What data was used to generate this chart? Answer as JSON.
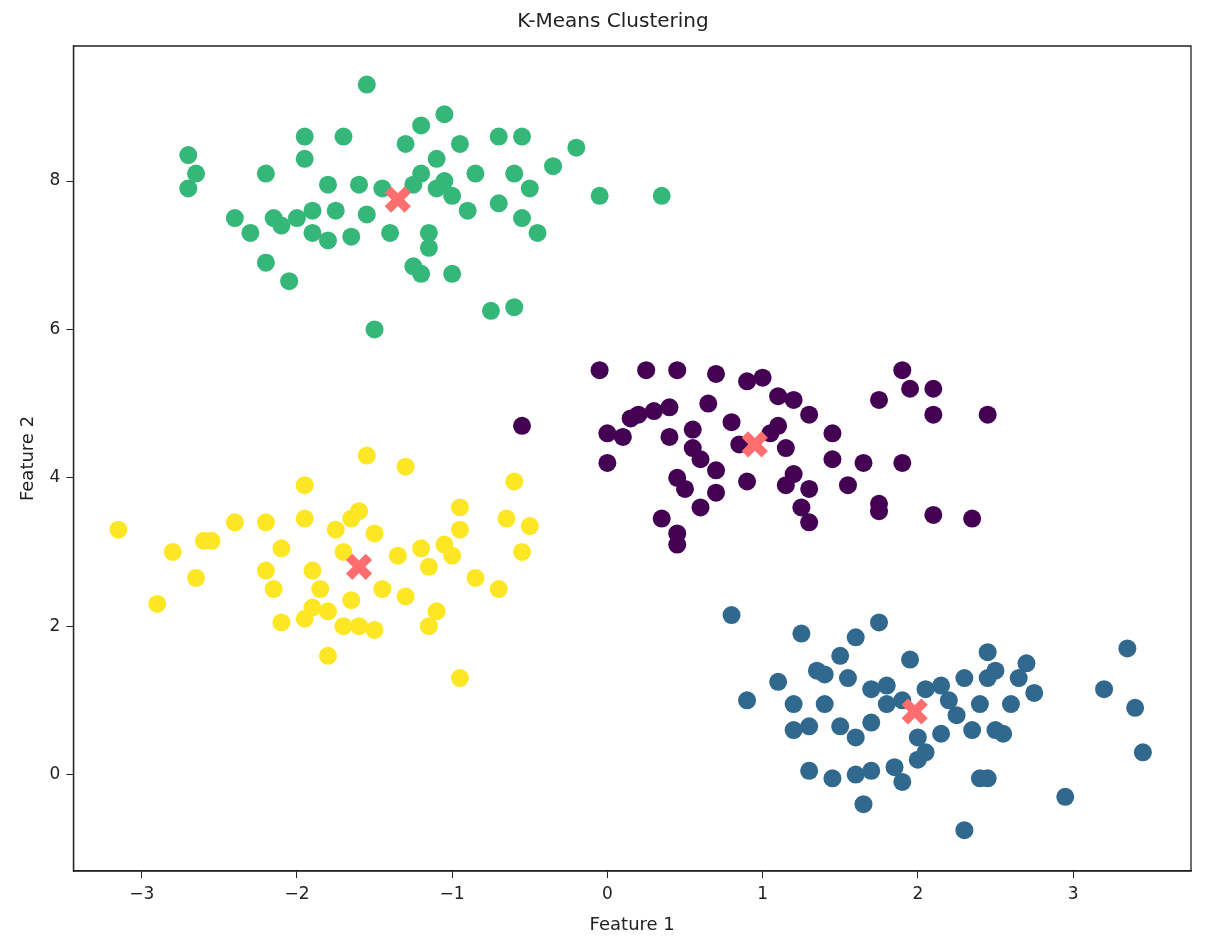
{
  "chart_data": {
    "type": "scatter",
    "title": "K-Means Clustering",
    "xlabel": "Feature 1",
    "ylabel": "Feature 2",
    "xlim": [
      -3.44,
      3.76
    ],
    "ylim": [
      -1.3,
      9.82
    ],
    "xticks": [
      -3,
      -2,
      -1,
      0,
      1,
      2,
      3
    ],
    "yticks": [
      0,
      2,
      4,
      6,
      8
    ],
    "grid": false,
    "legend": false,
    "series": [
      {
        "color": "#440154",
        "marker": "circle",
        "x": [
          -0.05,
          0.25,
          0.45,
          0.7,
          0.9,
          1.0,
          1.1,
          1.2,
          0.65,
          0.8,
          0.2,
          0.3,
          0.4,
          0.15,
          0.0,
          0.1,
          0.0,
          0.4,
          0.55,
          0.55,
          0.6,
          0.7,
          0.45,
          0.5,
          0.7,
          0.6,
          0.35,
          0.45,
          0.45,
          0.9,
          1.05,
          1.1,
          1.15,
          1.2,
          1.3,
          1.25,
          1.3,
          1.15,
          1.45,
          1.45,
          1.65,
          1.55,
          1.75,
          1.75,
          1.9,
          1.9,
          1.95,
          2.1,
          2.1,
          2.45,
          2.1,
          2.35,
          1.75,
          -0.55,
          0.85,
          1.3
        ],
        "values": [
          5.45,
          5.45,
          5.45,
          5.4,
          5.3,
          5.35,
          5.1,
          5.05,
          5.0,
          4.75,
          4.85,
          4.9,
          4.95,
          4.8,
          4.6,
          4.55,
          4.2,
          4.55,
          4.65,
          4.4,
          4.25,
          4.1,
          4.0,
          3.85,
          3.8,
          3.6,
          3.45,
          3.25,
          3.1,
          3.95,
          4.6,
          4.7,
          4.4,
          4.05,
          3.85,
          3.6,
          3.4,
          3.9,
          4.6,
          4.25,
          4.2,
          3.9,
          3.65,
          3.55,
          4.2,
          5.45,
          5.2,
          5.2,
          4.85,
          4.85,
          3.5,
          3.45,
          5.05,
          4.7,
          4.45,
          4.85
        ]
      },
      {
        "color": "#31688e",
        "marker": "circle",
        "x": [
          0.8,
          0.9,
          1.1,
          1.2,
          1.25,
          1.35,
          1.4,
          1.5,
          1.55,
          1.6,
          1.75,
          1.7,
          1.8,
          1.9,
          1.95,
          2.05,
          2.15,
          2.2,
          2.3,
          2.45,
          2.5,
          2.45,
          2.7,
          2.65,
          2.75,
          3.2,
          3.35,
          3.4,
          3.45,
          1.2,
          1.3,
          1.4,
          1.5,
          1.6,
          1.7,
          1.3,
          1.45,
          1.6,
          1.7,
          1.65,
          1.85,
          1.9,
          2.0,
          2.05,
          2.0,
          2.15,
          2.25,
          2.35,
          2.4,
          2.5,
          2.55,
          2.4,
          2.45,
          2.3,
          2.95,
          1.8,
          2.6
        ],
        "values": [
          2.15,
          1.0,
          1.25,
          0.95,
          1.9,
          1.4,
          1.35,
          1.6,
          1.3,
          1.85,
          2.05,
          1.15,
          1.2,
          1.0,
          1.55,
          1.15,
          1.2,
          1.0,
          1.3,
          1.65,
          1.4,
          1.3,
          1.5,
          1.3,
          1.1,
          1.15,
          1.7,
          0.9,
          0.3,
          0.6,
          0.65,
          0.95,
          0.65,
          0.5,
          0.7,
          0.05,
          -0.05,
          0.0,
          0.05,
          -0.4,
          0.1,
          -0.1,
          0.5,
          0.3,
          0.2,
          0.55,
          0.8,
          0.6,
          0.95,
          0.6,
          0.55,
          -0.05,
          -0.05,
          -0.75,
          -0.3,
          0.95,
          0.95
        ]
      },
      {
        "color": "#35b779",
        "marker": "circle",
        "x": [
          -1.55,
          -1.2,
          -1.05,
          -2.7,
          -2.65,
          -2.7,
          -2.4,
          -2.2,
          -1.95,
          -1.95,
          -1.7,
          -1.3,
          -1.2,
          -1.1,
          -0.95,
          -0.85,
          -0.7,
          -0.55,
          -0.6,
          -0.35,
          -0.2,
          0.35,
          -0.05,
          -0.5,
          -0.55,
          -0.45,
          -0.7,
          -0.9,
          -1.0,
          -1.1,
          -1.15,
          -1.15,
          -1.25,
          -1.2,
          -1.0,
          -0.75,
          -0.6,
          -1.5,
          -1.4,
          -1.45,
          -1.55,
          -1.65,
          -1.75,
          -1.8,
          -1.9,
          -1.9,
          -1.8,
          -2.0,
          -2.1,
          -2.3,
          -2.2,
          -2.05,
          -2.15,
          -1.6,
          -1.25,
          -1.05
        ],
        "values": [
          9.3,
          8.75,
          8.9,
          8.35,
          8.1,
          7.9,
          7.5,
          8.1,
          8.6,
          8.3,
          8.6,
          8.5,
          8.1,
          8.3,
          8.5,
          8.1,
          8.6,
          8.6,
          8.1,
          8.2,
          8.45,
          7.8,
          7.8,
          7.9,
          7.5,
          7.3,
          7.7,
          7.6,
          7.8,
          7.9,
          7.3,
          7.1,
          6.85,
          6.75,
          6.75,
          6.25,
          6.3,
          6.0,
          7.3,
          7.9,
          7.55,
          7.25,
          7.6,
          7.95,
          7.6,
          7.3,
          7.2,
          7.5,
          7.4,
          7.3,
          6.9,
          6.65,
          7.5,
          7.95,
          7.95,
          8.0
        ]
      },
      {
        "color": "#fde725",
        "marker": "circle",
        "x": [
          -3.15,
          -2.8,
          -2.65,
          -2.6,
          -2.55,
          -2.4,
          -2.9,
          -2.2,
          -2.2,
          -2.15,
          -2.1,
          -2.1,
          -1.95,
          -1.95,
          -1.9,
          -1.85,
          -1.8,
          -1.8,
          -1.7,
          -1.7,
          -1.75,
          -1.65,
          -1.6,
          -1.55,
          -1.5,
          -1.45,
          -1.5,
          -1.3,
          -1.35,
          -1.3,
          -1.2,
          -1.05,
          -1.0,
          -0.95,
          -0.95,
          -0.85,
          -0.7,
          -0.65,
          -0.6,
          -0.55,
          -0.5,
          -1.15,
          -1.1,
          -0.95,
          -1.95,
          -1.65,
          -1.9,
          -1.6,
          -1.15
        ],
        "values": [
          3.3,
          3.0,
          2.65,
          3.15,
          3.15,
          3.4,
          2.3,
          2.75,
          3.4,
          2.5,
          3.05,
          2.05,
          3.9,
          3.45,
          2.75,
          2.5,
          2.2,
          1.6,
          2.0,
          3.0,
          3.3,
          3.45,
          3.55,
          4.3,
          3.25,
          2.5,
          1.95,
          2.4,
          2.95,
          4.15,
          3.05,
          3.1,
          2.95,
          3.3,
          3.6,
          2.65,
          2.5,
          3.45,
          3.95,
          3.0,
          3.35,
          2.0,
          2.2,
          1.3,
          2.1,
          2.35,
          2.25,
          2.0,
          2.8
        ]
      },
      {
        "color": "#ff6e6e",
        "marker": "cross",
        "x": [
          0.95,
          1.98,
          -1.35,
          -1.6
        ],
        "values": [
          4.45,
          0.85,
          7.75,
          2.8
        ]
      }
    ]
  }
}
